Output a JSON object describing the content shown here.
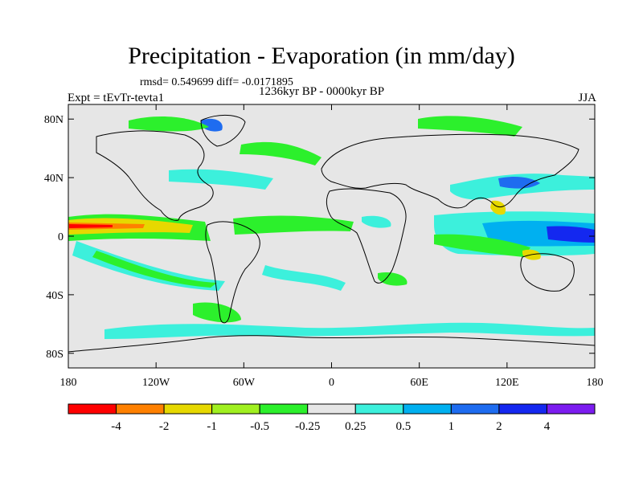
{
  "header": {
    "title": "Precipitation - Evaporation (in mm/day)",
    "stats": "rmsd= 0.549699 diff= -0.0171895",
    "period": "1236kyr BP - 0000kyr BP",
    "experiment": "Expt = tEvTr-tevta1",
    "season": "JJA"
  },
  "map": {
    "lat_labels": [
      "80N",
      "40N",
      "0",
      "40S",
      "80S"
    ],
    "lat_values": [
      80,
      40,
      0,
      -40,
      -80
    ],
    "lon_labels": [
      "180",
      "120W",
      "60W",
      "0",
      "60E",
      "120E",
      "180"
    ],
    "lon_values": [
      -180,
      -120,
      -60,
      0,
      60,
      120,
      180
    ],
    "background_color": "#e6e6e6"
  },
  "colorbar": {
    "labels": [
      "-4",
      "-2",
      "-1",
      "-0.5",
      "-0.25",
      "0.25",
      "0.5",
      "1",
      "2",
      "4"
    ],
    "colors": [
      "#ff0000",
      "#ff8000",
      "#e6d800",
      "#a0f020",
      "#2cf02c",
      "#e6e6e6",
      "#3cf0dc",
      "#00b0f0",
      "#1e6cf0",
      "#1428f0",
      "#7c1cf0"
    ]
  }
}
